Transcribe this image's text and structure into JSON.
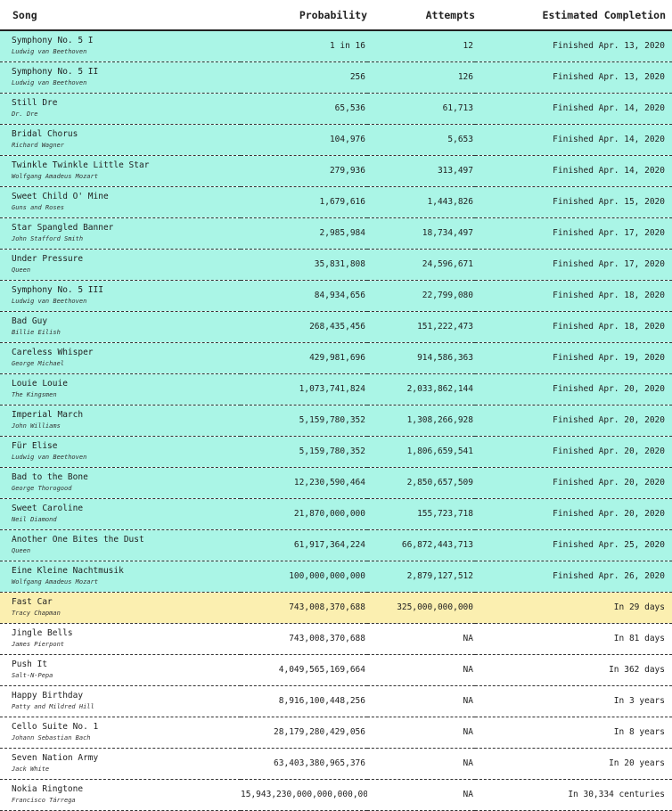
{
  "columns": {
    "song": "Song",
    "probability": "Probability",
    "attempts": "Attempts",
    "estimated": "Estimated Completion"
  },
  "rows": [
    {
      "title": "Symphony No. 5 I",
      "artist": "Ludwig van Beethoven",
      "probability": "1 in 16",
      "attempts": "12",
      "estimated": "Finished Apr. 13, 2020",
      "status": "finished"
    },
    {
      "title": "Symphony No. 5 II",
      "artist": "Ludwig van Beethoven",
      "probability": "256",
      "attempts": "126",
      "estimated": "Finished Apr. 13, 2020",
      "status": "finished"
    },
    {
      "title": "Still Dre",
      "artist": "Dr. Dre",
      "probability": "65,536",
      "attempts": "61,713",
      "estimated": "Finished Apr. 14, 2020",
      "status": "finished"
    },
    {
      "title": "Bridal Chorus",
      "artist": "Richard Wagner",
      "probability": "104,976",
      "attempts": "5,653",
      "estimated": "Finished Apr. 14, 2020",
      "status": "finished"
    },
    {
      "title": "Twinkle Twinkle Little Star",
      "artist": "Wolfgang Amadeus Mozart",
      "probability": "279,936",
      "attempts": "313,497",
      "estimated": "Finished Apr. 14, 2020",
      "status": "finished"
    },
    {
      "title": "Sweet Child O' Mine",
      "artist": "Guns and Roses",
      "probability": "1,679,616",
      "attempts": "1,443,826",
      "estimated": "Finished Apr. 15, 2020",
      "status": "finished"
    },
    {
      "title": "Star Spangled Banner",
      "artist": "John Stafford Smith",
      "probability": "2,985,984",
      "attempts": "18,734,497",
      "estimated": "Finished Apr. 17, 2020",
      "status": "finished"
    },
    {
      "title": "Under Pressure",
      "artist": "Queen",
      "probability": "35,831,808",
      "attempts": "24,596,671",
      "estimated": "Finished Apr. 17, 2020",
      "status": "finished"
    },
    {
      "title": "Symphony No. 5 III",
      "artist": "Ludwig van Beethoven",
      "probability": "84,934,656",
      "attempts": "22,799,080",
      "estimated": "Finished Apr. 18, 2020",
      "status": "finished"
    },
    {
      "title": "Bad Guy",
      "artist": "Billie Eilish",
      "probability": "268,435,456",
      "attempts": "151,222,473",
      "estimated": "Finished Apr. 18, 2020",
      "status": "finished"
    },
    {
      "title": "Careless Whisper",
      "artist": "George Michael",
      "probability": "429,981,696",
      "attempts": "914,586,363",
      "estimated": "Finished Apr. 19, 2020",
      "status": "finished"
    },
    {
      "title": "Louie Louie",
      "artist": "The Kingsmen",
      "probability": "1,073,741,824",
      "attempts": "2,033,862,144",
      "estimated": "Finished Apr. 20, 2020",
      "status": "finished"
    },
    {
      "title": "Imperial March",
      "artist": "John Williams",
      "probability": "5,159,780,352",
      "attempts": "1,308,266,928",
      "estimated": "Finished Apr. 20, 2020",
      "status": "finished"
    },
    {
      "title": "Für Elise",
      "artist": "Ludwig van Beethoven",
      "probability": "5,159,780,352",
      "attempts": "1,806,659,541",
      "estimated": "Finished Apr. 20, 2020",
      "status": "finished"
    },
    {
      "title": "Bad to the Bone",
      "artist": "George Thorogood",
      "probability": "12,230,590,464",
      "attempts": "2,850,657,509",
      "estimated": "Finished Apr. 20, 2020",
      "status": "finished"
    },
    {
      "title": "Sweet Caroline",
      "artist": "Neil Diamond",
      "probability": "21,870,000,000",
      "attempts": "155,723,718",
      "estimated": "Finished Apr. 20, 2020",
      "status": "finished"
    },
    {
      "title": "Another One Bites the Dust",
      "artist": "Queen",
      "probability": "61,917,364,224",
      "attempts": "66,872,443,713",
      "estimated": "Finished Apr. 25, 2020",
      "status": "finished"
    },
    {
      "title": "Eine Kleine Nachtmusik",
      "artist": "Wolfgang Amadeus Mozart",
      "probability": "100,000,000,000",
      "attempts": "2,879,127,512",
      "estimated": "Finished Apr. 26, 2020",
      "status": "finished"
    },
    {
      "title": "Fast Car",
      "artist": "Tracy Chapman",
      "probability": "743,008,370,688",
      "attempts": "325,000,000,000",
      "estimated": "In 29 days",
      "status": "current"
    },
    {
      "title": "Jingle Bells",
      "artist": "James Pierpont",
      "probability": "743,008,370,688",
      "attempts": "NA",
      "estimated": "In 81 days",
      "status": "pending"
    },
    {
      "title": "Push It",
      "artist": "Salt-N-Pepa",
      "probability": "4,049,565,169,664",
      "attempts": "NA",
      "estimated": "In 362 days",
      "status": "pending"
    },
    {
      "title": "Happy Birthday",
      "artist": "Patty and Mildred Hill",
      "probability": "8,916,100,448,256",
      "attempts": "NA",
      "estimated": "In 3 years",
      "status": "pending"
    },
    {
      "title": "Cello Suite No. 1",
      "artist": "Johann Sebastian Bach",
      "probability": "28,179,280,429,056",
      "attempts": "NA",
      "estimated": "In 8 years",
      "status": "pending"
    },
    {
      "title": "Seven Nation Army",
      "artist": "Jack White",
      "probability": "63,403,380,965,376",
      "attempts": "NA",
      "estimated": "In 20 years",
      "status": "pending"
    },
    {
      "title": "Nokia Ringtone",
      "artist": "Francisco Tárrega",
      "probability": "15,943,230,000,000,000,000",
      "attempts": "NA",
      "estimated": "In 30,334 centuries",
      "status": "pending"
    }
  ]
}
